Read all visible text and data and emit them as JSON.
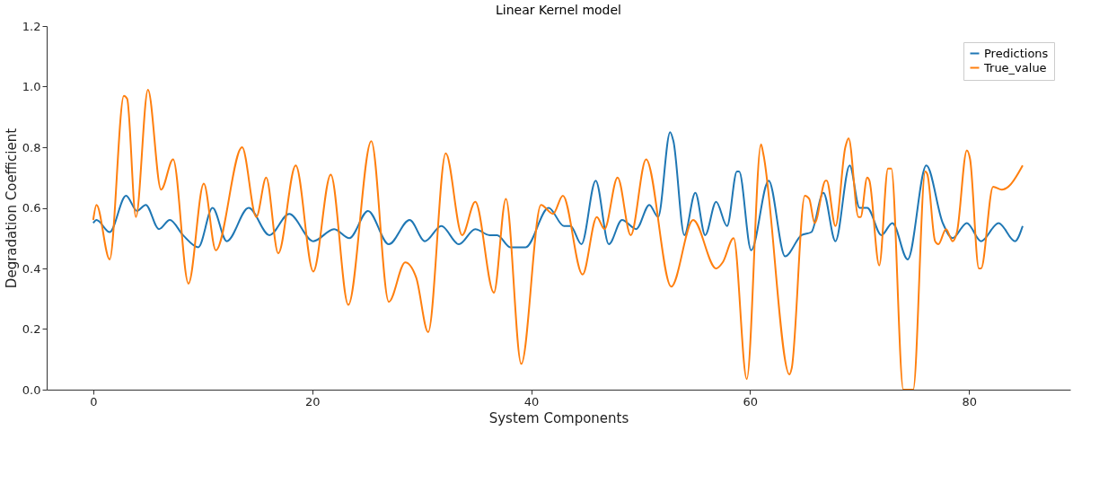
{
  "chart_data": {
    "type": "line",
    "title": "Linear Kernel model",
    "xlabel": "System Components",
    "ylabel": "Degradation Coefficient",
    "xlim": [
      -4.25,
      89.25
    ],
    "xticks": [
      0,
      20,
      40,
      60,
      80
    ],
    "ylim": [
      0,
      1.2
    ],
    "yticks": [
      {
        "value": 0,
        "label": "0.0"
      },
      {
        "value": 0.2,
        "label": "0.2"
      },
      {
        "value": 0.4,
        "label": "0.4"
      },
      {
        "value": 0.6,
        "label": "0.6"
      },
      {
        "value": 0.8,
        "label": "0.8"
      },
      {
        "value": 1.0,
        "label": "1.0"
      },
      {
        "value": 1.2,
        "label": "1.2"
      }
    ],
    "grid": false,
    "legend": "top right",
    "marker": "none",
    "line_style": "solid",
    "series": [
      {
        "name": "Predictions",
        "color": "#1f77b4",
        "x": [
          0,
          0.3,
          1.5,
          3.0,
          4.0,
          4.8,
          6.0,
          7.0,
          8.2,
          9.6,
          10.9,
          12.2,
          14.2,
          16.1,
          17.9,
          20.1,
          22.0,
          23.4,
          25.1,
          27.0,
          28.9,
          30.3,
          31.8,
          33.4,
          34.9,
          36.2,
          36.9,
          38.1,
          39.5,
          41.6,
          43.0,
          43.6,
          44.6,
          45.9,
          47.1,
          48.3,
          49.6,
          50.8,
          51.6,
          52.7,
          53.0,
          54.0,
          55.0,
          55.9,
          56.9,
          57.9,
          58.8,
          59.0,
          60.1,
          61.7,
          63.2,
          64.7,
          65.6,
          66.7,
          67.8,
          69.1,
          70.0,
          70.7,
          72.0,
          73.0,
          74.4,
          76.1,
          77.6,
          78.5,
          79.8,
          81.1,
          82.7,
          84.2,
          84.9
        ],
        "values": [
          0.55,
          0.56,
          0.52,
          0.64,
          0.59,
          0.61,
          0.53,
          0.56,
          0.51,
          0.47,
          0.6,
          0.49,
          0.6,
          0.51,
          0.58,
          0.49,
          0.53,
          0.5,
          0.59,
          0.48,
          0.56,
          0.49,
          0.54,
          0.48,
          0.53,
          0.51,
          0.51,
          0.47,
          0.47,
          0.6,
          0.54,
          0.54,
          0.48,
          0.69,
          0.48,
          0.56,
          0.53,
          0.61,
          0.57,
          0.85,
          0.82,
          0.51,
          0.65,
          0.51,
          0.62,
          0.54,
          0.72,
          0.72,
          0.46,
          0.69,
          0.44,
          0.51,
          0.52,
          0.65,
          0.49,
          0.74,
          0.6,
          0.6,
          0.51,
          0.55,
          0.43,
          0.74,
          0.55,
          0.5,
          0.55,
          0.49,
          0.55,
          0.49,
          0.54
        ]
      },
      {
        "name": "True_value",
        "color": "#ff7f0e",
        "x": [
          0,
          0.3,
          1.5,
          2.8,
          3.1,
          3.9,
          5.0,
          6.2,
          7.3,
          8.7,
          10.1,
          11.2,
          13.6,
          14.9,
          15.8,
          16.9,
          18.5,
          20.1,
          21.7,
          23.3,
          25.4,
          27.0,
          28.5,
          29.5,
          30.6,
          32.2,
          33.7,
          34.9,
          36.6,
          37.7,
          39.1,
          40.9,
          42.0,
          42.9,
          44.7,
          46.0,
          46.7,
          47.9,
          49.1,
          50.5,
          52.8,
          54.8,
          56.9,
          57.5,
          58.5,
          59.7,
          61.0,
          61.2,
          63.6,
          63.8,
          65.0,
          65.4,
          65.9,
          66.9,
          67.0,
          67.8,
          68.7,
          69.0,
          69.9,
          70.1,
          70.7,
          70.9,
          71.8,
          72.6,
          72.9,
          74.0,
          74.9,
          76.0,
          76.2,
          76.9,
          77.2,
          77.9,
          78.5,
          78.9,
          79.8,
          80.1,
          80.9,
          81.1,
          82.2,
          83.0,
          83.6,
          84.9
        ],
        "values": [
          0.56,
          0.61,
          0.43,
          0.97,
          0.96,
          0.57,
          0.99,
          0.66,
          0.76,
          0.35,
          0.68,
          0.46,
          0.8,
          0.57,
          0.7,
          0.45,
          0.74,
          0.39,
          0.71,
          0.28,
          0.82,
          0.29,
          0.42,
          0.37,
          0.19,
          0.78,
          0.51,
          0.62,
          0.32,
          0.63,
          0.085,
          0.61,
          0.58,
          0.64,
          0.38,
          0.57,
          0.53,
          0.7,
          0.51,
          0.76,
          0.34,
          0.56,
          0.4,
          0.42,
          0.5,
          0.035,
          0.81,
          0.78,
          0.05,
          0.07,
          0.64,
          0.63,
          0.55,
          0.69,
          0.69,
          0.54,
          0.8,
          0.83,
          0.57,
          0.57,
          0.7,
          0.69,
          0.41,
          0.73,
          0.73,
          0,
          0,
          0.72,
          0.71,
          0.49,
          0.48,
          0.53,
          0.49,
          0.52,
          0.79,
          0.76,
          0.4,
          0.4,
          0.67,
          0.66,
          0.67,
          0.74
        ]
      }
    ]
  }
}
